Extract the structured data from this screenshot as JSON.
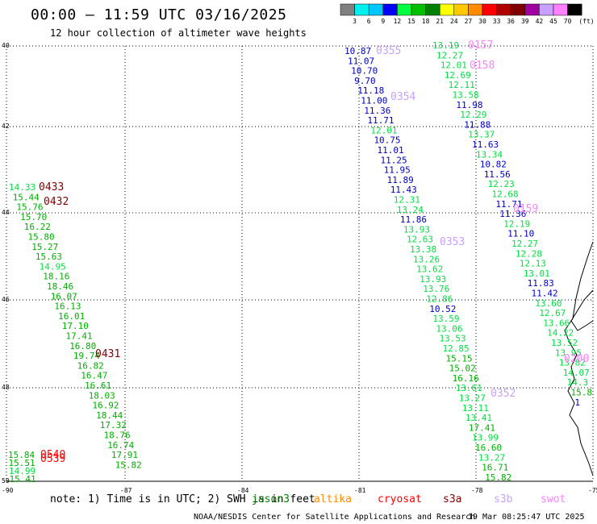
{
  "title": "00:00 — 11:59 UTC 03/16/2025",
  "subtitle": "12 hour collection of altimeter wave heights",
  "legend": {
    "unit": "(ft)",
    "labels": [
      "3",
      "6",
      "9",
      "12",
      "15",
      "18",
      "21",
      "24",
      "27",
      "30",
      "33",
      "36",
      "39",
      "42",
      "45",
      "70"
    ],
    "colors": [
      "#808080",
      "#00f0f0",
      "#00c8ff",
      "#0000ff",
      "#00ff40",
      "#00c000",
      "#008000",
      "#ffff00",
      "#ffc800",
      "#ff8c00",
      "#ff0000",
      "#b00000",
      "#800000",
      "#a000a0",
      "#c8a0ff",
      "#ff80ff",
      "#000000"
    ]
  },
  "lat_labels": [
    "40",
    "42",
    "44",
    "46",
    "48",
    "50"
  ],
  "lon_labels": [
    "-90",
    "-87",
    "-84",
    "-81",
    "-78",
    "-75"
  ],
  "footer": {
    "note": "note: 1) Time is in UTC; 2) SWH is in feet",
    "satellites": [
      {
        "name": "jason3",
        "color": "#008000"
      },
      {
        "name": "altika",
        "color": "#ff8c00"
      },
      {
        "name": "cryosat",
        "color": "#ff0000"
      },
      {
        "name": "s3a",
        "color": "#800000"
      },
      {
        "name": "s3b",
        "color": "#c8a0ff"
      },
      {
        "name": "swot",
        "color": "#ff80ff"
      }
    ],
    "credit": "NOAA/NESDIS Center for Satellite Applications and Research",
    "timestamp": "19 Mar 08:25:47 UTC 2025"
  },
  "track_times": [
    {
      "text": "0433",
      "color": "#800000"
    },
    {
      "text": "0432",
      "color": "#800000"
    },
    {
      "text": "0431",
      "color": "#800000"
    },
    {
      "text": "0540",
      "color": "#ff0000"
    },
    {
      "text": "0539",
      "color": "#ff0000"
    },
    {
      "text": "0355",
      "color": "#c8a0ff"
    },
    {
      "text": "0354",
      "color": "#c8a0ff"
    },
    {
      "text": "0353",
      "color": "#c8a0ff"
    },
    {
      "text": "0352",
      "color": "#c8a0ff"
    },
    {
      "text": "0157",
      "color": "#ff80ff"
    },
    {
      "text": "0158",
      "color": "#ff80ff"
    },
    {
      "text": "0159",
      "color": "#ff80ff"
    },
    {
      "text": "0200",
      "color": "#ff80ff"
    }
  ],
  "tracks": {
    "s3a_west": [
      "14.33",
      "15.44",
      "15.76",
      "15.70",
      "16.22",
      "15.80",
      "15.27",
      "15.63",
      "14.95",
      "18.16",
      "18.46",
      "16.07",
      "16.13",
      "16.01",
      "17.10",
      "17.41",
      "16.80",
      "19.74",
      "16.82",
      "16.47",
      "16.61",
      "18.03",
      "16.92",
      "18.44",
      "17.32",
      "18.76",
      "16.74",
      "17.91",
      "15.82"
    ],
    "cryosat_west": [
      "15.84",
      "15.51",
      "14.99",
      "15.41"
    ],
    "s3b_mid": [
      "10.87",
      "11.07",
      "10.70",
      "9.70",
      "11.18",
      "11.00",
      "11.36",
      "11.71",
      "12.01",
      "10.75",
      "11.01",
      "11.25",
      "11.95",
      "11.89",
      "11.43",
      "12.31",
      "13.24",
      "11.86",
      "13.93",
      "12.63",
      "13.38",
      "13.26",
      "13.62",
      "13.93",
      "13.76",
      "12.86",
      "10.52",
      "13.59",
      "13.06",
      "13.53",
      "12.85",
      "15.15",
      "15.02",
      "16.16",
      "13.61",
      "13.27",
      "13.11",
      "13.41",
      "17.41",
      "13.99",
      "16.60",
      "13.27",
      "16.71",
      "15.82"
    ],
    "swot_east": [
      "13.19",
      "12.27",
      "12.01",
      "12.69",
      "12.11",
      "13.58",
      "11.98",
      "12.29",
      "11.88",
      "13.37",
      "11.63",
      "13.34",
      "10.82",
      "11.56",
      "12.23",
      "12.68",
      "11.71",
      "11.36",
      "12.19",
      "11.10",
      "12.27",
      "12.28",
      "12.13",
      "13.01",
      "11.83",
      "11.42",
      "13.60",
      "12.67",
      "13.66",
      "14.22",
      "13.52",
      "13.95",
      "13.82",
      "14.07",
      "14.3",
      "15.8",
      "1"
    ]
  }
}
